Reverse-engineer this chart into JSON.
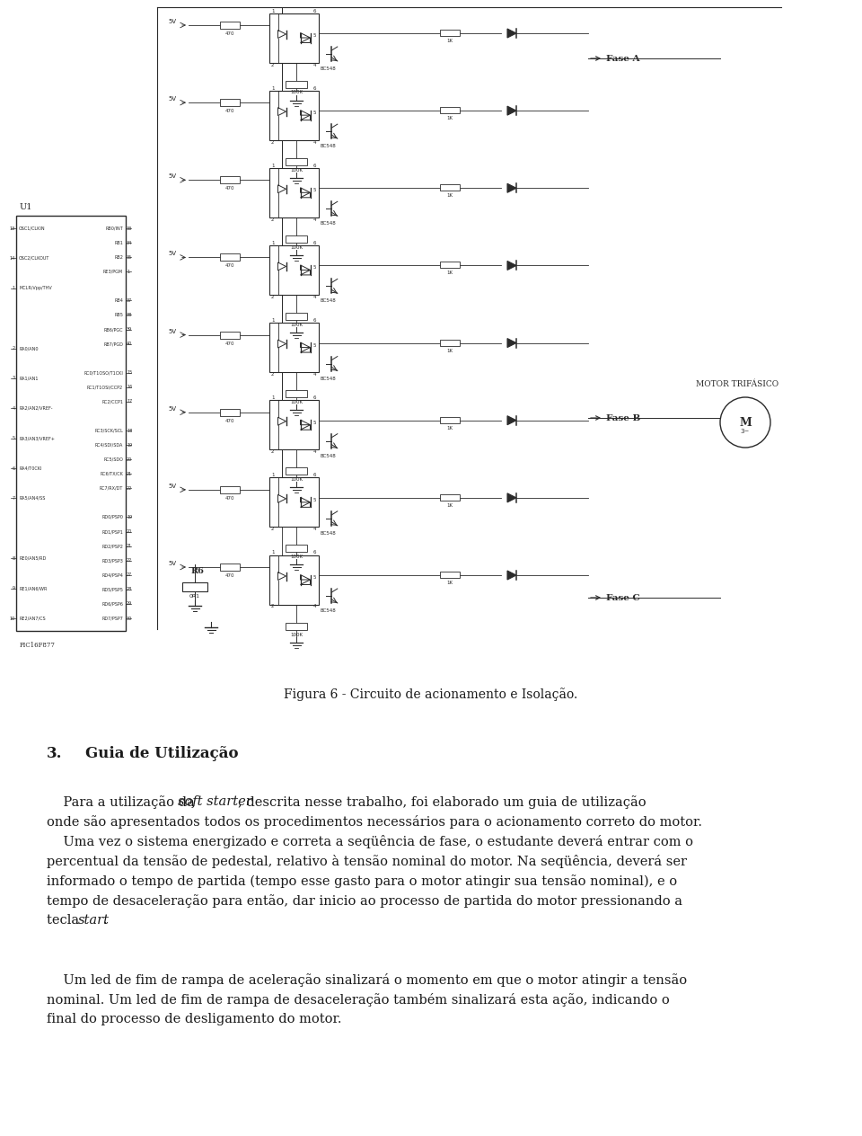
{
  "figure_caption": "Figura 6 - Circuito de acionamento e Isolação.",
  "section_number": "3.",
  "section_title": "Guia de Utilização",
  "p1_pre": "    Para a utilização da ",
  "p1_italic": "soft starter",
  "p1_post": ", descrita nesse trabalho, foi elaborado um guia de utilização",
  "p1_line2": "onde são apresentados todos os procedimentos necessários para o acionamento correto do motor.",
  "p2_line1": "    Uma vez o sistema energizado e correta a seqüência de fase, o estudante deverá entrar com o",
  "p2_line2": "percentual da tensão de pedestal, relativo à tensão nominal do motor. Na seqüência, deverá ser",
  "p2_line3": "informado o tempo de partida (tempo esse gasto para o motor atingir sua tensão nominal), e o",
  "p2_line4": "tempo de desaceleração para então, dar inicio ao processo de partida do motor pressionando a",
  "p2_line5_pre": "tecla ",
  "p2_line5_italic": "start",
  "p2_line5_post": ".",
  "p3_line1": "    Um led de fim de rampa de aceleração sinalizará o momento em que o motor atingir a tensão",
  "p3_line2": "nominal. Um led de fim de rampa de desaceleração também sinalizará esta ação, indicando o",
  "p3_line3": "final do processo de desligamento do motor.",
  "bg_color": "#ffffff",
  "text_color": "#1a1a1a",
  "circuit_color": "#2a2a2a",
  "page_width": 9.6,
  "page_height": 12.64,
  "dpi": 100
}
